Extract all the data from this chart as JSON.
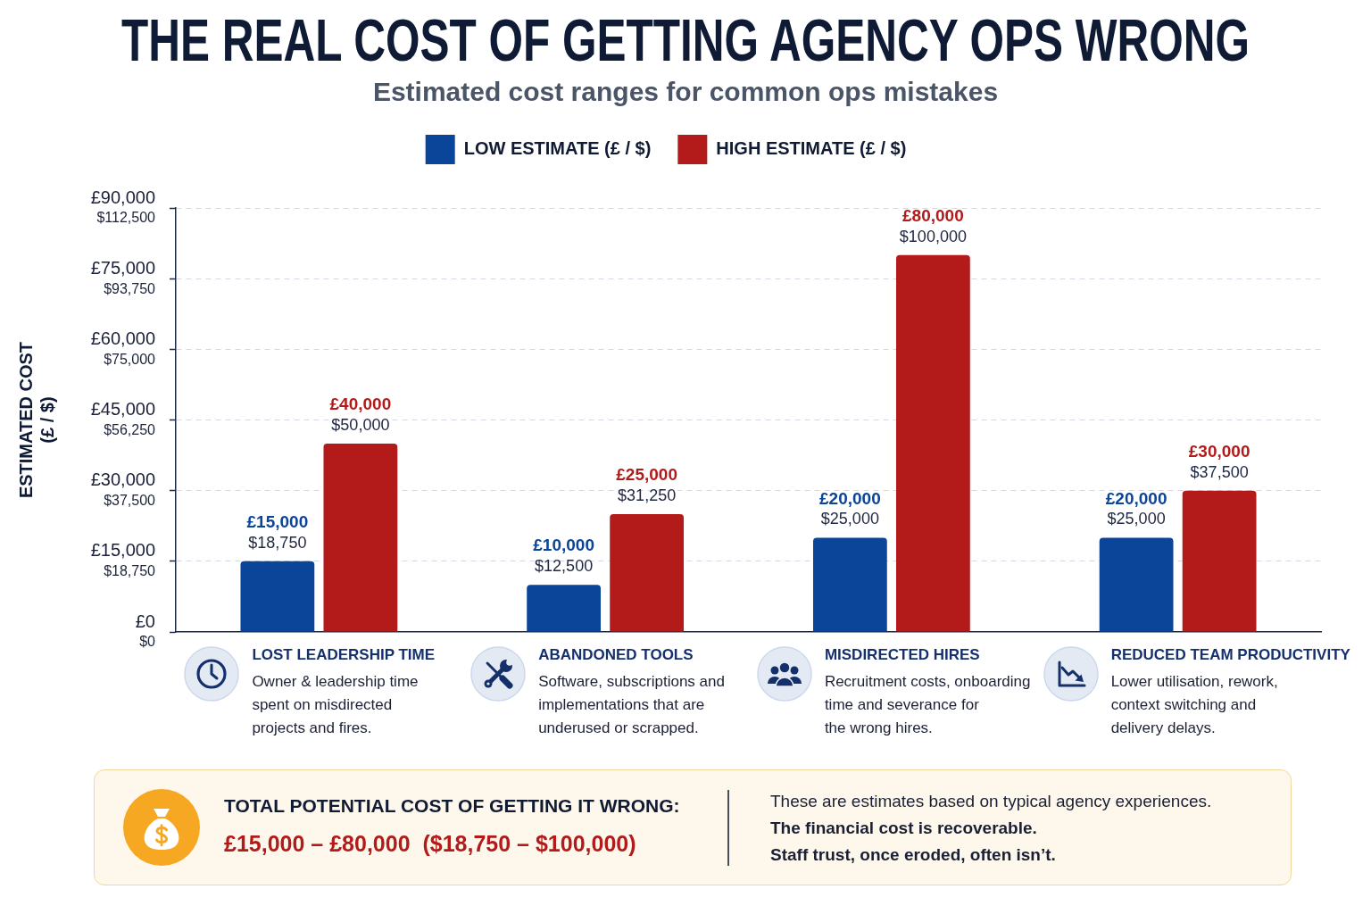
{
  "chart_data": {
    "type": "bar",
    "title": "THE REAL COST OF GETTING AGENCY OPS WRONG",
    "subtitle": "Estimated cost ranges for common ops mistakes",
    "ylabel": "ESTIMATED COST\n(£ / $)",
    "categories": [
      "LOST LEADERSHIP TIME",
      "ABANDONED TOOLS",
      "MISDIRECTED HIRES",
      "REDUCED TEAM PRODUCTIVITY"
    ],
    "series": [
      {
        "name": "LOW ESTIMATE (£ / $)",
        "color": "#0b4599",
        "values": [
          15000,
          10000,
          20000,
          20000
        ],
        "value_labels": [
          "£15,000\n$18,750",
          "£10,000\n$12,500",
          "£20,000\n$25,000",
          "£20,000\n$25,000"
        ]
      },
      {
        "name": "HIGH ESTIMATE (£ / $)",
        "color": "#b31b1b",
        "values": [
          40000,
          25000,
          80000,
          30000
        ],
        "value_labels": [
          "£40,000\n$50,000",
          "£25,000\n$31,250",
          "£80,000\n$100,000",
          "£30,000\n$37,500"
        ]
      }
    ],
    "ylim": [
      0,
      90000
    ],
    "yticks": [
      {
        "value": 0,
        "label": "£0"
      },
      {
        "value": 15000,
        "label": "£15,000"
      },
      {
        "value": 30000,
        "label": "£30,000"
      },
      {
        "value": 45000,
        "label": "£45,000"
      },
      {
        "value": 60000,
        "label": "£60,000"
      },
      {
        "value": 75000,
        "label": "£75,000"
      },
      {
        "value": 90000,
        "label": "£90,000"
      }
    ],
    "y2lim": [
      0,
      112500
    ],
    "y2ticks": [
      {
        "value": 0,
        "label": "$0"
      },
      {
        "value": 18750,
        "label": "$18,750"
      },
      {
        "value": 37500,
        "label": "$37,500"
      },
      {
        "value": 56250,
        "label": "$56,250"
      },
      {
        "value": 75000,
        "label": "$75,000"
      },
      {
        "value": 93750,
        "label": "$93,750"
      },
      {
        "value": 112500,
        "label": "$112,500"
      }
    ],
    "grid": "y",
    "legend": "top",
    "annotations": [
      "Owner & leadership time\nspent on misdirected\nprojects and fires.",
      "Software, subscriptions and\nimplementations that are\nunderused or scrapped.",
      "Recruitment costs, onboarding\ntime and severance for\nthe wrong hires.",
      "Lower utilisation, rework,\ncontext switching and\ndelivery delays.",
      "TOTAL POTENTIAL COST OF GETTING IT WRONG:",
      "£15,000 – £80,000  ($18,750 – $100,000)",
      "These are estimates based on typical agency experiences.",
      "The financial cost is recoverable.",
      "Staff trust, once eroded, often isn’t."
    ]
  }
}
